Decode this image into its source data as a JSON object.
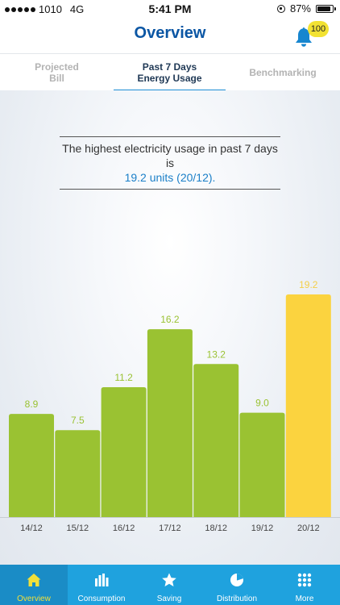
{
  "status_bar": {
    "carrier": "1010",
    "network": "4G",
    "time": "5:41 PM",
    "battery": "87%",
    "battery_level": 0.87
  },
  "header": {
    "title": "Overview",
    "notification_count": "100"
  },
  "tabs": [
    {
      "label": "Projected Bill",
      "active": false
    },
    {
      "label": "Past 7 Days Energy Usage",
      "active": true
    },
    {
      "label": "Benchmarking",
      "active": false
    }
  ],
  "summary": {
    "text": "The highest electricity usage in past 7 days is",
    "highlight": "19.2 units (20/12)."
  },
  "chart_data": {
    "type": "bar",
    "categories": [
      "14/12",
      "15/12",
      "16/12",
      "17/12",
      "18/12",
      "19/12",
      "20/12"
    ],
    "values": [
      8.9,
      7.5,
      11.2,
      16.2,
      13.2,
      9.0,
      19.2
    ],
    "value_labels": [
      "8.9",
      "7.5",
      "11.2",
      "16.2",
      "13.2",
      "9.0",
      "19.2"
    ],
    "highlight_index": 6,
    "colors": {
      "bar": "#9ac232",
      "highlight": "#fbd33f",
      "label": "#9ac232",
      "highlight_label": "#f4cf48"
    },
    "ylim": [
      0,
      21.5
    ],
    "grid": false,
    "legend": "none"
  },
  "bottom_nav": [
    {
      "label": "Overview",
      "icon": "home-icon",
      "active": true
    },
    {
      "label": "Consumption",
      "icon": "bar-chart-icon",
      "active": false
    },
    {
      "label": "Saving",
      "icon": "star-icon",
      "active": false
    },
    {
      "label": "Distribution",
      "icon": "pie-chart-icon",
      "active": false
    },
    {
      "label": "More",
      "icon": "grid-icon",
      "active": false
    }
  ]
}
